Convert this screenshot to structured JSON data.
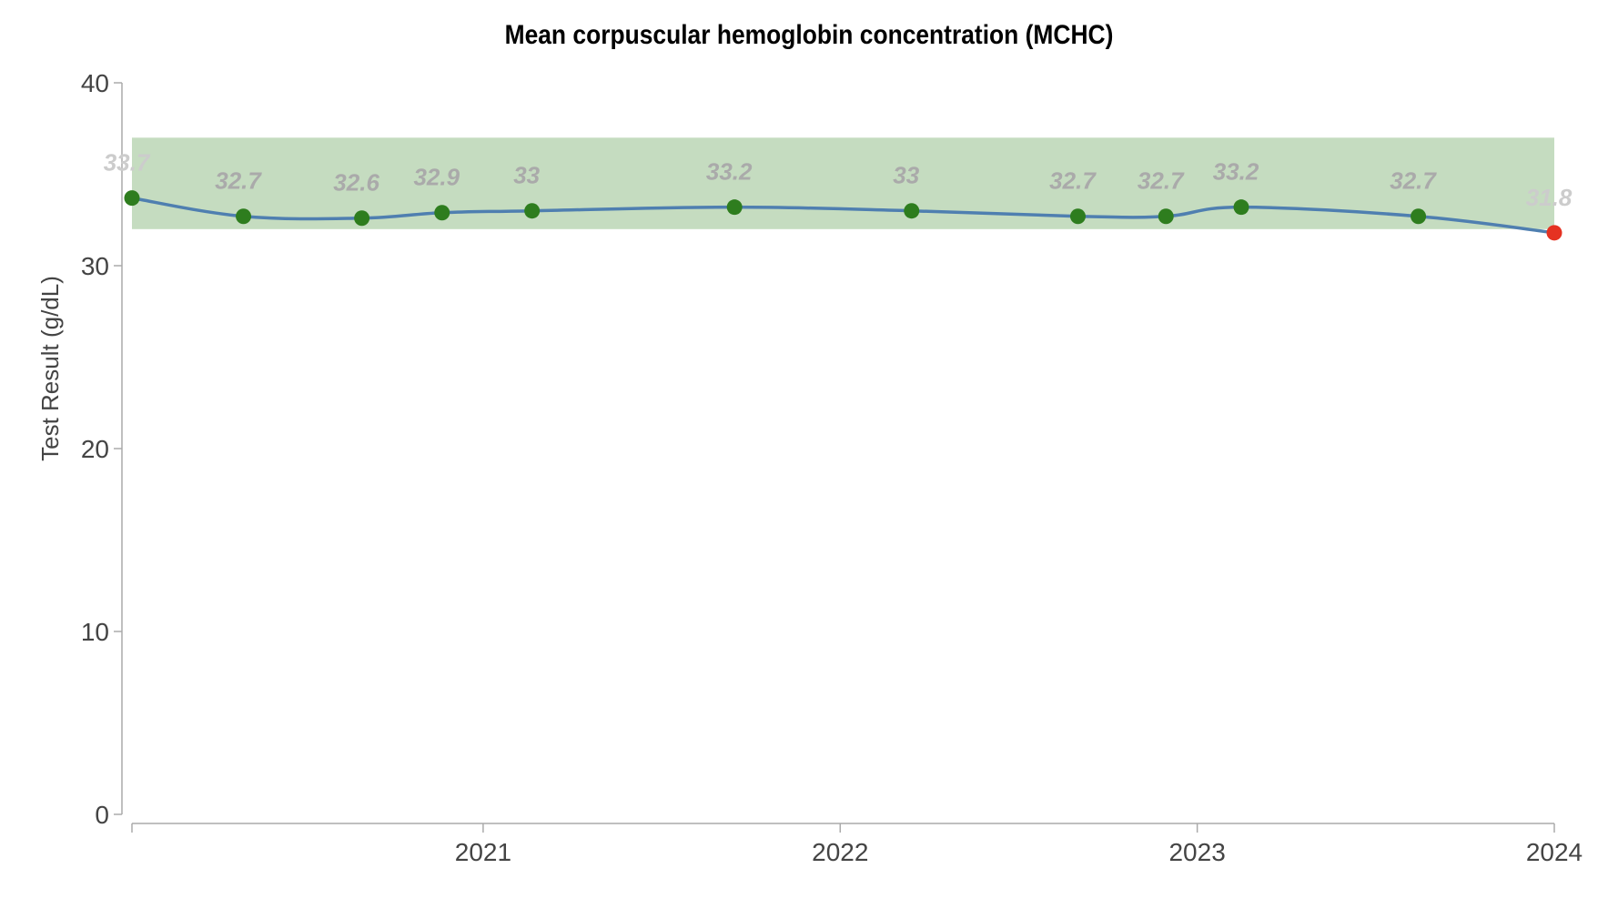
{
  "chart_data": {
    "type": "line",
    "title": "Mean corpuscular hemoglobin concentration (MCHC)",
    "xlabel": "",
    "ylabel": "Test Result (g/dL)",
    "ylim": [
      0,
      40
    ],
    "xlim": [
      "2020-01-08",
      "2024-01-01"
    ],
    "y_ticks": [
      0,
      10,
      20,
      30,
      40
    ],
    "x_ticks": [
      {
        "value": "2021-01-01",
        "label": "2021"
      },
      {
        "value": "2022-01-01",
        "label": "2022"
      },
      {
        "value": "2023-01-01",
        "label": "2023"
      },
      {
        "value": "2024-01-01",
        "label": "2024"
      }
    ],
    "reference_range": [
      32,
      37
    ],
    "grid": false,
    "series": [
      {
        "points": [
          {
            "x": "2020-01-08",
            "y": 33.7,
            "label": "33.7",
            "status": "normal"
          },
          {
            "x": "2020-05-01",
            "y": 32.7,
            "label": "32.7",
            "status": "normal"
          },
          {
            "x": "2020-08-30",
            "y": 32.6,
            "label": "32.6",
            "status": "normal"
          },
          {
            "x": "2020-11-20",
            "y": 32.9,
            "label": "32.9",
            "status": "normal"
          },
          {
            "x": "2021-02-20",
            "y": 33,
            "label": "33",
            "status": "normal"
          },
          {
            "x": "2021-09-15",
            "y": 33.2,
            "label": "33.2",
            "status": "normal"
          },
          {
            "x": "2022-03-15",
            "y": 33,
            "label": "33",
            "status": "normal"
          },
          {
            "x": "2022-09-01",
            "y": 32.7,
            "label": "32.7",
            "status": "normal"
          },
          {
            "x": "2022-11-30",
            "y": 32.7,
            "label": "32.7",
            "status": "normal"
          },
          {
            "x": "2023-02-15",
            "y": 33.2,
            "label": "33.2",
            "status": "normal"
          },
          {
            "x": "2023-08-15",
            "y": 32.7,
            "label": "32.7",
            "status": "normal"
          },
          {
            "x": "2024-01-01",
            "y": 31.8,
            "label": "31.8",
            "status": "low"
          }
        ]
      }
    ]
  },
  "colors": {
    "line": "#4f7fb0",
    "normal_point": "#2e7d1e",
    "out_of_range_point": "#e53222",
    "reference_band": "#c5dcc0",
    "axis": "#aaaaaa",
    "data_label": "#aaaaaa",
    "edge_data_label": "#cccccc"
  }
}
